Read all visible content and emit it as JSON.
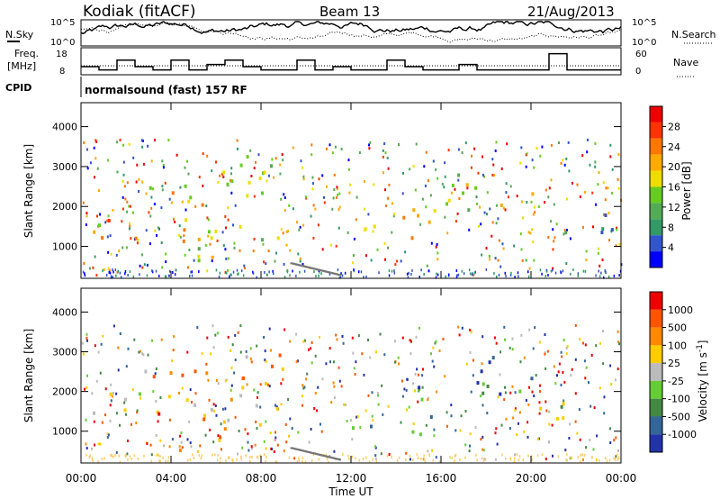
{
  "header": {
    "station": "Kodiak (fitACF)",
    "beam": "Beam 13",
    "date": "21/Aug/2013"
  },
  "panels": {
    "nsky_label": "N.Sky",
    "nsky_ticks": [
      "10^5",
      "10^0"
    ],
    "nsearch_label": "N.Search",
    "freq_label_line1": "Freq.",
    "freq_label_line2": "[MHz]",
    "freq_ticks": [
      "18",
      "8"
    ],
    "nave_ticks": [
      "60",
      "0"
    ],
    "nave_label": "Nave",
    "cpid_label": "CPID",
    "cpid_value": "normalsound (fast) 157 RF"
  },
  "chart_data": [
    {
      "type": "heatmap",
      "name": "power",
      "ylabel": "Slant Range [km]",
      "xlabel": "Time UT",
      "y_ticks": [
        "1000",
        "2000",
        "3000",
        "4000"
      ],
      "x_ticks": [
        "00:00",
        "04:00",
        "08:00",
        "12:00",
        "16:00",
        "20:00",
        "00:00"
      ],
      "colorbar_label": "Power [dB]",
      "colorbar_ticks": [
        "28",
        "24",
        "20",
        "16",
        "12",
        "8",
        "4"
      ],
      "colors": [
        "#0000ff",
        "#3355cc",
        "#339966",
        "#55aa55",
        "#66cc22",
        "#eedd00",
        "#ffaa00",
        "#ff7700",
        "#ff3300",
        "#ee0000"
      ],
      "echo_regions": [
        {
          "t0": 0.1,
          "t1": 2.7,
          "r0": 1100,
          "r1": 2000,
          "level": 0.7
        },
        {
          "t0": 2.7,
          "t1": 6.2,
          "r0": 500,
          "r1": 2700,
          "level": 0.6
        },
        {
          "t0": 6.2,
          "t1": 9.2,
          "r0": 1100,
          "r1": 3300,
          "level": 0.4
        },
        {
          "t0": 11.9,
          "t1": 13.3,
          "r0": 1000,
          "r1": 1600,
          "level": 0.6
        },
        {
          "t0": 14.2,
          "t1": 16.2,
          "r0": 950,
          "r1": 2200,
          "level": 0.65
        },
        {
          "t0": 16.0,
          "t1": 20.3,
          "r0": 1900,
          "r1": 2900,
          "level": 0.55
        },
        {
          "t0": 20.3,
          "t1": 23.8,
          "r0": 1200,
          "r1": 1900,
          "level": 0.25
        }
      ],
      "ground_scatter": {
        "t0": 9.3,
        "t1": 11.5,
        "r0": 300,
        "r1": 600
      }
    },
    {
      "type": "heatmap",
      "name": "velocity",
      "ylabel": "Slant Range [km]",
      "xlabel": "Time UT",
      "y_ticks": [
        "1000",
        "2000",
        "3000",
        "4000"
      ],
      "x_ticks": [
        "00:00",
        "04:00",
        "08:00",
        "12:00",
        "16:00",
        "20:00",
        "00:00"
      ],
      "colorbar_label": "Velocity [m s^-1]",
      "colorbar_ticks": [
        "1000",
        "500",
        "100",
        "25",
        "-25",
        "-100",
        "-500",
        "-1000"
      ],
      "colors": [
        "#2233aa",
        "#336699",
        "#448844",
        "#66cc33",
        "#bbbbbb",
        "#ffcc00",
        "#ff8800",
        "#ff5500",
        "#ee0000"
      ],
      "echo_regions": [
        {
          "t0": 0.1,
          "t1": 2.7,
          "r0": 1100,
          "r1": 2000,
          "level": 0.45
        },
        {
          "t0": 2.7,
          "t1": 6.2,
          "r0": 500,
          "r1": 2700,
          "level": 0.7
        },
        {
          "t0": 6.2,
          "t1": 9.2,
          "r0": 1100,
          "r1": 3300,
          "level": 0.7
        },
        {
          "t0": 11.9,
          "t1": 13.3,
          "r0": 1000,
          "r1": 1600,
          "level": 0.35
        },
        {
          "t0": 14.2,
          "t1": 16.2,
          "r0": 950,
          "r1": 2200,
          "level": 0.15
        },
        {
          "t0": 16.0,
          "t1": 20.3,
          "r0": 1900,
          "r1": 2900,
          "level": 0.15
        },
        {
          "t0": 20.3,
          "t1": 23.8,
          "r0": 1200,
          "r1": 1900,
          "level": 0.45
        }
      ],
      "ground_scatter": {
        "t0": 9.3,
        "t1": 11.5,
        "r0": 300,
        "r1": 600
      }
    }
  ]
}
